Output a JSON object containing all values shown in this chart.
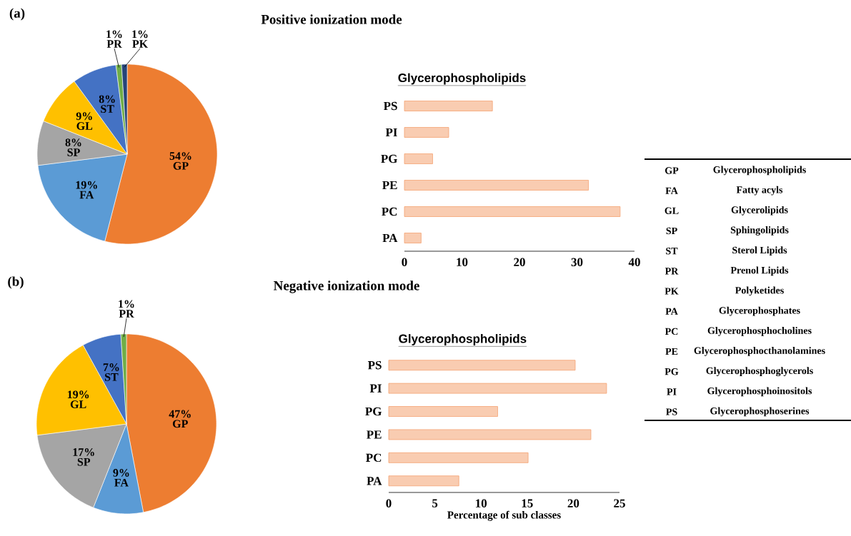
{
  "chart_data": [
    {
      "type": "pie",
      "title": "Positive ionization mode",
      "annotations": [
        "(a)"
      ],
      "categories": [
        "GP",
        "FA",
        "SP",
        "GL",
        "ST",
        "PR",
        "PK"
      ],
      "values": [
        54,
        19,
        8,
        9,
        8,
        1,
        1
      ],
      "value_labels": [
        "54%",
        "19%",
        "8%",
        "9%",
        "8%",
        "1%",
        "1%"
      ],
      "colors": [
        "#ed7d31",
        "#5b9bd5",
        "#a5a5a5",
        "#ffc000",
        "#4472c4",
        "#70ad47",
        "#264478"
      ]
    },
    {
      "type": "bar",
      "orientation": "horizontal",
      "title": "Glycerophospholipids",
      "categories": [
        "PS",
        "PI",
        "PG",
        "PE",
        "PC",
        "PA"
      ],
      "values": [
        15.3,
        7.7,
        4.9,
        32.0,
        37.5,
        2.9
      ],
      "color": "#f4a272",
      "xlim": [
        0,
        40
      ],
      "xticks": [
        0,
        10,
        20,
        30,
        40
      ]
    },
    {
      "type": "pie",
      "title": "Negative ionization mode",
      "annotations": [
        "(b)"
      ],
      "categories": [
        "GP",
        "FA",
        "SP",
        "GL",
        "ST",
        "PR"
      ],
      "values": [
        47,
        9,
        17,
        19,
        7,
        1
      ],
      "value_labels": [
        "47%",
        "9%",
        "17%",
        "19%",
        "7%",
        "1%"
      ],
      "colors": [
        "#ed7d31",
        "#5b9bd5",
        "#a5a5a5",
        "#ffc000",
        "#4472c4",
        "#70ad47"
      ]
    },
    {
      "type": "bar",
      "orientation": "horizontal",
      "title": "Glycerophospholipids",
      "xlabel": "Percentage of sub classes",
      "categories": [
        "PS",
        "PI",
        "PG",
        "PE",
        "PC",
        "PA"
      ],
      "values": [
        20.2,
        23.6,
        11.8,
        21.9,
        15.1,
        7.6
      ],
      "color": "#f4a272",
      "xlim": [
        0,
        25
      ],
      "xticks": [
        0,
        5,
        10,
        15,
        20,
        25
      ]
    },
    {
      "type": "other",
      "annotations": [
        "GP",
        "Glycerophospholipids",
        "FA",
        "Fatty acyls",
        "GL",
        "Glycerolipids",
        "SP",
        "Sphingolipids",
        "ST",
        "Sterol Lipids",
        "PR",
        "Prenol Lipids",
        "PK",
        "Polyketides",
        "PA",
        "Glycerophosphates",
        "PC",
        "Glycerophosphocholines",
        "PE",
        "Glycerophosphocthanolamines",
        "PG",
        "Glycerophosphoglycerols",
        "PI",
        "Glycerophosphoinositols",
        "PS",
        "Glycerophosphoserines"
      ]
    }
  ]
}
